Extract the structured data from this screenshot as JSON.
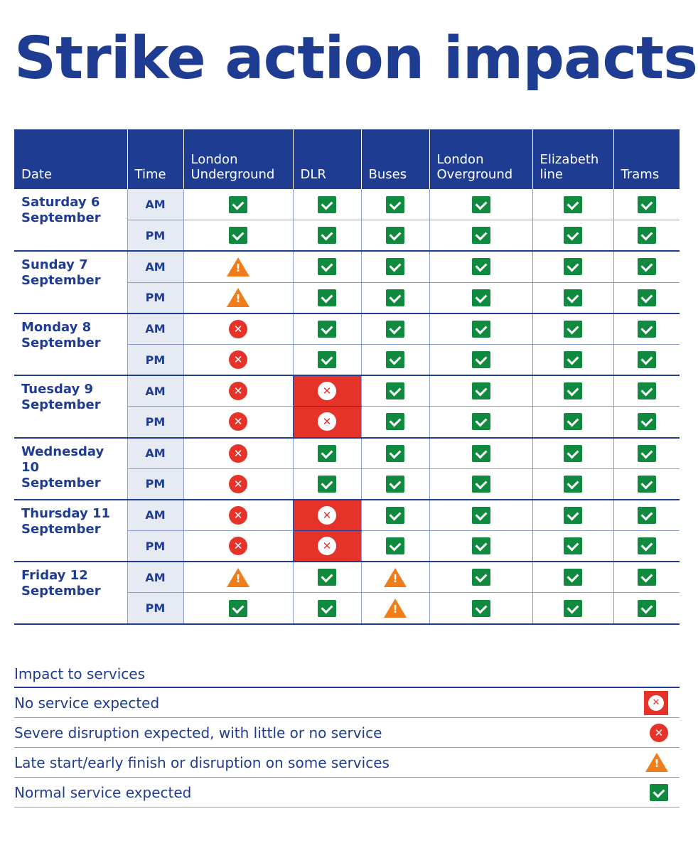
{
  "title": "Strike action impacts",
  "colors": {
    "brand_blue": "#1f3c93",
    "no_service_red": "#e5332a",
    "warning_orange": "#ef7d1a",
    "normal_green": "#0f8a3e"
  },
  "table": {
    "headers": [
      "Date",
      "Time",
      "London Underground",
      "DLR",
      "Buses",
      "London Overground",
      "Elizabeth line",
      "Trams"
    ],
    "status_legend": {
      "ok": "Normal service expected",
      "warn": "Late start/early finish or disruption on some services",
      "severe": "Severe disruption expected, with little or no service",
      "none": "No service expected"
    },
    "days": [
      {
        "date": "Saturday 6 September",
        "periods": [
          {
            "time": "AM",
            "statuses": [
              "ok",
              "ok",
              "ok",
              "ok",
              "ok",
              "ok"
            ]
          },
          {
            "time": "PM",
            "statuses": [
              "ok",
              "ok",
              "ok",
              "ok",
              "ok",
              "ok"
            ]
          }
        ]
      },
      {
        "date": "Sunday 7 September",
        "periods": [
          {
            "time": "AM",
            "statuses": [
              "warn",
              "ok",
              "ok",
              "ok",
              "ok",
              "ok"
            ]
          },
          {
            "time": "PM",
            "statuses": [
              "warn",
              "ok",
              "ok",
              "ok",
              "ok",
              "ok"
            ]
          }
        ]
      },
      {
        "date": "Monday 8 September",
        "periods": [
          {
            "time": "AM",
            "statuses": [
              "severe",
              "ok",
              "ok",
              "ok",
              "ok",
              "ok"
            ]
          },
          {
            "time": "PM",
            "statuses": [
              "severe",
              "ok",
              "ok",
              "ok",
              "ok",
              "ok"
            ]
          }
        ]
      },
      {
        "date": "Tuesday 9 September",
        "periods": [
          {
            "time": "AM",
            "statuses": [
              "severe",
              "none",
              "ok",
              "ok",
              "ok",
              "ok"
            ]
          },
          {
            "time": "PM",
            "statuses": [
              "severe",
              "none",
              "ok",
              "ok",
              "ok",
              "ok"
            ]
          }
        ]
      },
      {
        "date": "Wednesday 10 September",
        "periods": [
          {
            "time": "AM",
            "statuses": [
              "severe",
              "ok",
              "ok",
              "ok",
              "ok",
              "ok"
            ]
          },
          {
            "time": "PM",
            "statuses": [
              "severe",
              "ok",
              "ok",
              "ok",
              "ok",
              "ok"
            ]
          }
        ]
      },
      {
        "date": "Thursday 11 September",
        "periods": [
          {
            "time": "AM",
            "statuses": [
              "severe",
              "none",
              "ok",
              "ok",
              "ok",
              "ok"
            ]
          },
          {
            "time": "PM",
            "statuses": [
              "severe",
              "none",
              "ok",
              "ok",
              "ok",
              "ok"
            ]
          }
        ]
      },
      {
        "date": "Friday 12 September",
        "periods": [
          {
            "time": "AM",
            "statuses": [
              "warn",
              "ok",
              "warn",
              "ok",
              "ok",
              "ok"
            ]
          },
          {
            "time": "PM",
            "statuses": [
              "ok",
              "ok",
              "warn",
              "ok",
              "ok",
              "ok"
            ]
          }
        ]
      }
    ]
  },
  "legend": {
    "title": "Impact to services",
    "items": [
      {
        "label": "No service expected",
        "icon": "none"
      },
      {
        "label": "Severe disruption expected, with little or no service",
        "icon": "severe"
      },
      {
        "label": "Late start/early finish or disruption on some services",
        "icon": "warn"
      },
      {
        "label": "Normal service expected",
        "icon": "ok"
      }
    ]
  }
}
